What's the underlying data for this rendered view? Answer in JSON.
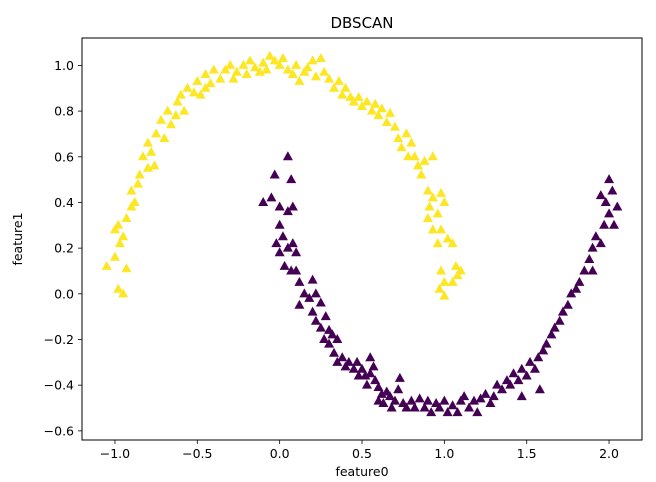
{
  "chart_data": {
    "type": "scatter",
    "title": "DBSCAN",
    "xlabel": "feature0",
    "ylabel": "feature1",
    "xlim": [
      -1.2,
      2.2
    ],
    "ylim": [
      -0.64,
      1.12
    ],
    "xticks": [
      -1.0,
      -0.5,
      0.0,
      0.5,
      1.0,
      1.5,
      2.0
    ],
    "xtick_labels": [
      "−1.0",
      "−0.5",
      "0.0",
      "0.5",
      "1.0",
      "1.5",
      "2.0"
    ],
    "yticks": [
      -0.6,
      -0.4,
      -0.2,
      0.0,
      0.2,
      0.4,
      0.6,
      0.8,
      1.0
    ],
    "ytick_labels": [
      "−0.6",
      "−0.4",
      "−0.2",
      "0.0",
      "0.2",
      "0.4",
      "0.6",
      "0.8",
      "1.0"
    ],
    "grid": false,
    "marker": "triangle",
    "series": [
      {
        "cluster": 0,
        "color": "#fde725",
        "points": [
          [
            -1.05,
            0.12
          ],
          [
            -1.0,
            0.16
          ],
          [
            -0.98,
            0.02
          ],
          [
            -0.95,
            0.0
          ],
          [
            -0.97,
            0.22
          ],
          [
            -1.0,
            0.28
          ],
          [
            -0.98,
            0.3
          ],
          [
            -0.95,
            0.25
          ],
          [
            -0.93,
            0.11
          ],
          [
            -0.93,
            0.33
          ],
          [
            -0.9,
            0.38
          ],
          [
            -0.9,
            0.45
          ],
          [
            -0.88,
            0.4
          ],
          [
            -0.86,
            0.48
          ],
          [
            -0.85,
            0.52
          ],
          [
            -0.83,
            0.6
          ],
          [
            -0.8,
            0.55
          ],
          [
            -0.78,
            0.62
          ],
          [
            -0.8,
            0.66
          ],
          [
            -0.76,
            0.56
          ],
          [
            -0.75,
            0.7
          ],
          [
            -0.72,
            0.76
          ],
          [
            -0.7,
            0.68
          ],
          [
            -0.68,
            0.8
          ],
          [
            -0.66,
            0.74
          ],
          [
            -0.63,
            0.78
          ],
          [
            -0.62,
            0.84
          ],
          [
            -0.6,
            0.87
          ],
          [
            -0.58,
            0.8
          ],
          [
            -0.56,
            0.9
          ],
          [
            -0.52,
            0.88
          ],
          [
            -0.5,
            0.93
          ],
          [
            -0.48,
            0.87
          ],
          [
            -0.45,
            0.9
          ],
          [
            -0.45,
            0.96
          ],
          [
            -0.42,
            0.92
          ],
          [
            -0.4,
            0.98
          ],
          [
            -0.36,
            0.94
          ],
          [
            -0.33,
            0.98
          ],
          [
            -0.3,
            1.0
          ],
          [
            -0.28,
            0.94
          ],
          [
            -0.26,
            0.97
          ],
          [
            -0.22,
            1.0
          ],
          [
            -0.2,
            0.96
          ],
          [
            -0.18,
            1.02
          ],
          [
            -0.15,
            0.99
          ],
          [
            -0.12,
            0.97
          ],
          [
            -0.1,
            1.01
          ],
          [
            -0.08,
            0.98
          ],
          [
            -0.06,
            1.04
          ],
          [
            -0.03,
            1.02
          ],
          [
            0.0,
            1.0
          ],
          [
            0.02,
            1.03
          ],
          [
            0.05,
            0.98
          ],
          [
            0.08,
            0.96
          ],
          [
            0.1,
            1.0
          ],
          [
            0.12,
            0.93
          ],
          [
            0.15,
            0.97
          ],
          [
            0.17,
            0.99
          ],
          [
            0.2,
            1.02
          ],
          [
            0.22,
            0.95
          ],
          [
            0.25,
            1.03
          ],
          [
            0.27,
            0.97
          ],
          [
            0.3,
            0.94
          ],
          [
            0.33,
            0.9
          ],
          [
            0.36,
            0.93
          ],
          [
            0.38,
            0.87
          ],
          [
            0.4,
            0.9
          ],
          [
            0.43,
            0.86
          ],
          [
            0.45,
            0.84
          ],
          [
            0.48,
            0.86
          ],
          [
            0.5,
            0.82
          ],
          [
            0.53,
            0.84
          ],
          [
            0.56,
            0.8
          ],
          [
            0.58,
            0.83
          ],
          [
            0.6,
            0.78
          ],
          [
            0.62,
            0.81
          ],
          [
            0.65,
            0.75
          ],
          [
            0.67,
            0.79
          ],
          [
            0.7,
            0.73
          ],
          [
            0.72,
            0.68
          ],
          [
            0.74,
            0.64
          ],
          [
            0.77,
            0.7
          ],
          [
            0.78,
            0.6
          ],
          [
            0.8,
            0.66
          ],
          [
            0.82,
            0.6
          ],
          [
            0.84,
            0.56
          ],
          [
            0.86,
            0.52
          ],
          [
            0.88,
            0.58
          ],
          [
            0.9,
            0.45
          ],
          [
            0.91,
            0.38
          ],
          [
            0.93,
            0.42
          ],
          [
            0.9,
            0.33
          ],
          [
            0.93,
            0.28
          ],
          [
            0.96,
            0.35
          ],
          [
            0.98,
            0.28
          ],
          [
            1.0,
            0.4
          ],
          [
            0.98,
            0.44
          ],
          [
            0.96,
            0.22
          ],
          [
            1.02,
            0.24
          ],
          [
            1.05,
            0.22
          ],
          [
            0.98,
            0.1
          ],
          [
            1.0,
            0.05
          ],
          [
            0.97,
            0.02
          ],
          [
            1.0,
            -0.01
          ],
          [
            1.05,
            0.05
          ],
          [
            1.08,
            0.08
          ],
          [
            1.1,
            0.1
          ],
          [
            1.07,
            0.12
          ],
          [
            0.93,
            0.6
          ]
        ]
      },
      {
        "cluster": 1,
        "color": "#440154",
        "points": [
          [
            0.05,
            0.6
          ],
          [
            -0.03,
            0.52
          ],
          [
            0.07,
            0.5
          ],
          [
            -0.1,
            0.4
          ],
          [
            -0.05,
            0.42
          ],
          [
            0.0,
            0.38
          ],
          [
            0.05,
            0.36
          ],
          [
            0.08,
            0.38
          ],
          [
            0.0,
            0.3
          ],
          [
            -0.02,
            0.22
          ],
          [
            0.02,
            0.25
          ],
          [
            0.05,
            0.2
          ],
          [
            0.08,
            0.22
          ],
          [
            0.1,
            0.18
          ],
          [
            0.0,
            0.18
          ],
          [
            0.03,
            0.12
          ],
          [
            0.07,
            0.1
          ],
          [
            0.1,
            0.1
          ],
          [
            0.12,
            0.05
          ],
          [
            0.15,
            0.0
          ],
          [
            0.18,
            -0.02
          ],
          [
            0.12,
            -0.05
          ],
          [
            0.2,
            0.06
          ],
          [
            0.22,
            0.0
          ],
          [
            0.2,
            -0.08
          ],
          [
            0.25,
            -0.04
          ],
          [
            0.22,
            -0.12
          ],
          [
            0.25,
            -0.15
          ],
          [
            0.28,
            -0.1
          ],
          [
            0.3,
            -0.16
          ],
          [
            0.27,
            -0.2
          ],
          [
            0.3,
            -0.22
          ],
          [
            0.32,
            -0.18
          ],
          [
            0.35,
            -0.2
          ],
          [
            0.33,
            -0.26
          ],
          [
            0.35,
            -0.3
          ],
          [
            0.38,
            -0.28
          ],
          [
            0.4,
            -0.32
          ],
          [
            0.42,
            -0.3
          ],
          [
            0.45,
            -0.33
          ],
          [
            0.47,
            -0.3
          ],
          [
            0.48,
            -0.36
          ],
          [
            0.5,
            -0.33
          ],
          [
            0.52,
            -0.36
          ],
          [
            0.53,
            -0.4
          ],
          [
            0.55,
            -0.35
          ],
          [
            0.57,
            -0.32
          ],
          [
            0.55,
            -0.28
          ],
          [
            0.58,
            -0.38
          ],
          [
            0.6,
            -0.41
          ],
          [
            0.62,
            -0.44
          ],
          [
            0.6,
            -0.47
          ],
          [
            0.63,
            -0.48
          ],
          [
            0.65,
            -0.43
          ],
          [
            0.67,
            -0.45
          ],
          [
            0.68,
            -0.5
          ],
          [
            0.7,
            -0.47
          ],
          [
            0.72,
            -0.42
          ],
          [
            0.73,
            -0.37
          ],
          [
            0.75,
            -0.48
          ],
          [
            0.77,
            -0.5
          ],
          [
            0.8,
            -0.47
          ],
          [
            0.82,
            -0.5
          ],
          [
            0.85,
            -0.46
          ],
          [
            0.88,
            -0.5
          ],
          [
            0.9,
            -0.47
          ],
          [
            0.92,
            -0.52
          ],
          [
            0.95,
            -0.48
          ],
          [
            0.97,
            -0.5
          ],
          [
            1.0,
            -0.47
          ],
          [
            1.02,
            -0.52
          ],
          [
            1.05,
            -0.49
          ],
          [
            1.08,
            -0.52
          ],
          [
            1.1,
            -0.47
          ],
          [
            1.12,
            -0.45
          ],
          [
            1.15,
            -0.5
          ],
          [
            1.18,
            -0.47
          ],
          [
            1.2,
            -0.52
          ],
          [
            1.22,
            -0.46
          ],
          [
            1.25,
            -0.44
          ],
          [
            1.28,
            -0.48
          ],
          [
            1.3,
            -0.45
          ],
          [
            1.32,
            -0.4
          ],
          [
            1.35,
            -0.42
          ],
          [
            1.38,
            -0.38
          ],
          [
            1.4,
            -0.4
          ],
          [
            1.42,
            -0.35
          ],
          [
            1.45,
            -0.38
          ],
          [
            1.47,
            -0.33
          ],
          [
            1.5,
            -0.36
          ],
          [
            1.52,
            -0.3
          ],
          [
            1.55,
            -0.33
          ],
          [
            1.57,
            -0.28
          ],
          [
            1.6,
            -0.25
          ],
          [
            1.62,
            -0.22
          ],
          [
            1.65,
            -0.18
          ],
          [
            1.67,
            -0.15
          ],
          [
            1.7,
            -0.12
          ],
          [
            1.72,
            -0.08
          ],
          [
            1.75,
            -0.05
          ],
          [
            1.77,
            0.0
          ],
          [
            1.8,
            0.02
          ],
          [
            1.82,
            0.05
          ],
          [
            1.85,
            0.1
          ],
          [
            1.88,
            0.15
          ],
          [
            1.9,
            0.2
          ],
          [
            1.92,
            0.25
          ],
          [
            1.95,
            0.22
          ],
          [
            1.97,
            0.3
          ],
          [
            2.0,
            0.35
          ],
          [
            1.98,
            0.4
          ],
          [
            2.02,
            0.45
          ],
          [
            2.0,
            0.5
          ],
          [
            2.05,
            0.38
          ],
          [
            2.03,
            0.3
          ],
          [
            1.95,
            0.43
          ],
          [
            1.9,
            0.1
          ],
          [
            1.58,
            -0.42
          ],
          [
            1.47,
            -0.45
          ]
        ]
      }
    ]
  }
}
